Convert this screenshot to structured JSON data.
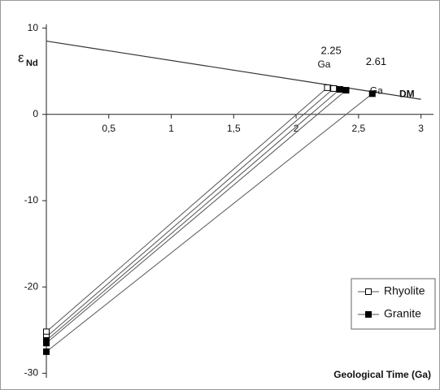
{
  "chart_data": {
    "type": "line",
    "y_label": {
      "symbol": "ε",
      "subscript": "Nd"
    },
    "x_label": "Geological Time (Ga)",
    "xlim": [
      0,
      3.1
    ],
    "ylim": [
      -31,
      11
    ],
    "xticks": [
      {
        "value": 0.5,
        "label": "0,5"
      },
      1,
      {
        "value": 1.5,
        "label": "1,5"
      },
      2,
      {
        "value": 2.5,
        "label": "2,5"
      },
      3
    ],
    "yticks": [
      10,
      0,
      -10,
      -20,
      -30
    ],
    "dm": {
      "name": "DM",
      "color": "#333333",
      "x": [
        0,
        3
      ],
      "values": [
        8.5,
        1.75
      ]
    },
    "series": [
      {
        "name": "Rhyolite",
        "color": "#555555",
        "marker_fill": "#ffffff",
        "lines": [
          {
            "x": [
              0,
              2.25
            ],
            "values": [
              -25.2,
              3.1
            ]
          },
          {
            "x": [
              0,
              2.3
            ],
            "values": [
              -25.8,
              3.0
            ]
          }
        ]
      },
      {
        "name": "Granite",
        "color": "#555555",
        "marker_fill": "#000000",
        "lines": [
          {
            "x": [
              0,
              2.35
            ],
            "values": [
              -26.2,
              2.9
            ]
          },
          {
            "x": [
              0,
              2.4
            ],
            "values": [
              -26.5,
              2.8
            ]
          },
          {
            "x": [
              0,
              2.61
            ],
            "values": [
              -27.5,
              2.4
            ]
          }
        ]
      }
    ],
    "annotations": [
      {
        "label": "2.25",
        "unit": "Ga",
        "x": 2.25,
        "y": 3.1
      },
      {
        "label": "2.61",
        "unit": "Ga",
        "x": 2.61,
        "y": 2.4
      }
    ],
    "legend": "lower right"
  }
}
